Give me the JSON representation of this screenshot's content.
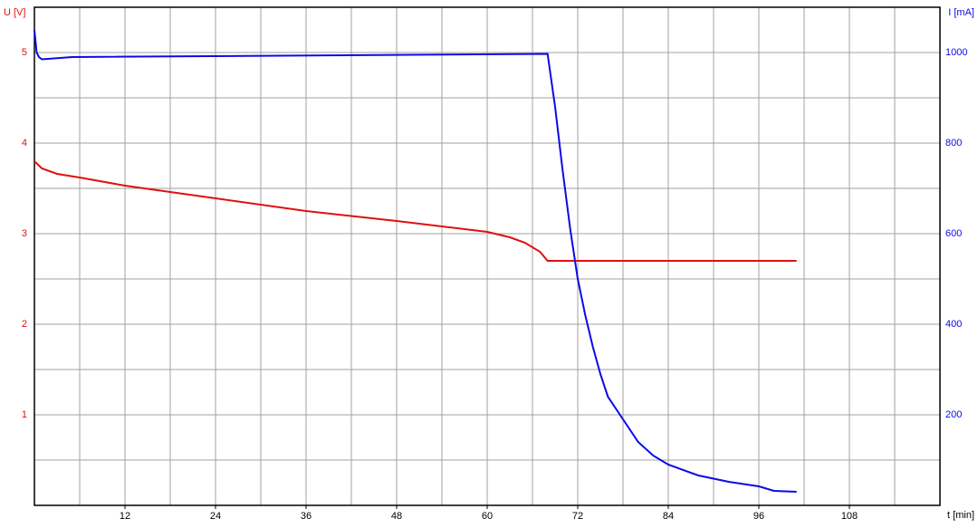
{
  "chart_data": {
    "type": "line",
    "y_label": "U [V]",
    "y2_label": "I [mA]",
    "x_label": "t [min]",
    "xlim": [
      0,
      120
    ],
    "xticks": [
      12,
      24,
      36,
      48,
      60,
      72,
      84,
      96,
      108
    ],
    "x_minor_ticks": [
      6,
      18,
      30,
      42,
      54,
      66,
      78,
      90,
      102,
      114
    ],
    "ylim": [
      0,
      5.5
    ],
    "yticks": [
      1,
      2,
      3,
      4,
      5
    ],
    "y_minor_ticks": [
      0.5,
      1.5,
      2.5,
      3.5,
      4.5
    ],
    "y2lim": [
      0,
      1100
    ],
    "y2ticks": [
      200,
      400,
      600,
      800,
      1000
    ],
    "grid": true,
    "series": [
      {
        "name": "U",
        "color": "#e01010",
        "axis": "y",
        "x": [
          0,
          1,
          3,
          6,
          12,
          24,
          36,
          48,
          54,
          60,
          63,
          65,
          67,
          68,
          72,
          84,
          96,
          101
        ],
        "values": [
          3.8,
          3.72,
          3.66,
          3.62,
          3.53,
          3.39,
          3.25,
          3.14,
          3.08,
          3.02,
          2.96,
          2.9,
          2.8,
          2.7,
          2.7,
          2.7,
          2.7,
          2.7
        ]
      },
      {
        "name": "I",
        "color": "#0a0ae6",
        "axis": "y2",
        "x": [
          0,
          0.3,
          0.6,
          1,
          5,
          68,
          69,
          70,
          71,
          72,
          73,
          74,
          75,
          76,
          78,
          80,
          82,
          84,
          88,
          92,
          96,
          98,
          101
        ],
        "values": [
          1050,
          1000,
          990,
          985,
          990,
          997,
          880,
          740,
          610,
          500,
          420,
          350,
          290,
          240,
          190,
          140,
          110,
          90,
          66,
          52,
          42,
          32,
          30
        ]
      }
    ]
  }
}
